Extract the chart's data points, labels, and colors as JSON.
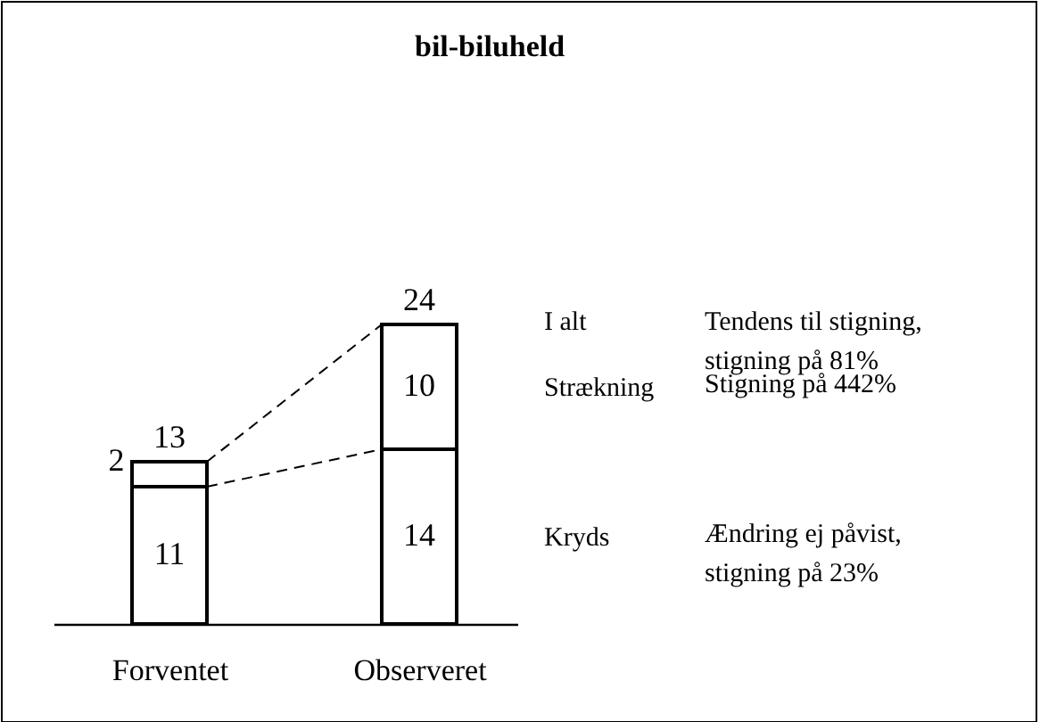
{
  "chart_data": {
    "type": "bar",
    "title": "bil-biluheld",
    "categories": [
      "Forventet",
      "Observeret"
    ],
    "series": [
      {
        "name": "Kryds",
        "color": "#ffffff",
        "values": [
          11,
          14
        ]
      },
      {
        "name": "Strækning",
        "color": "#ffffff",
        "values": [
          2,
          10
        ]
      }
    ],
    "stacked": true,
    "data_labels": true,
    "totals": [
      "13",
      "24"
    ],
    "annotations": [
      "I alt",
      "Tendens til stigning,\n stigning på 81%",
      "Stigning på 442%",
      "Ændring ej påvist,\nstigning på 23%"
    ],
    "legend": false
  }
}
